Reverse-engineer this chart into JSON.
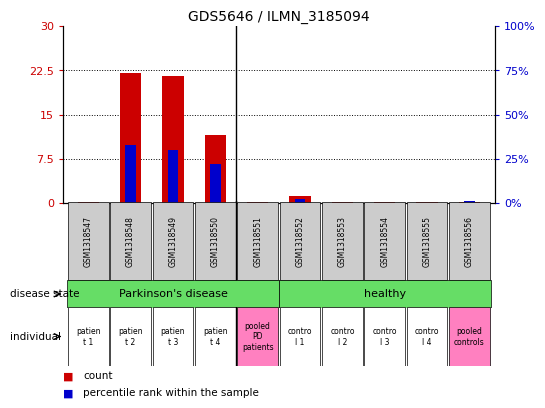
{
  "title": "GDS5646 / ILMN_3185094",
  "samples": [
    "GSM1318547",
    "GSM1318548",
    "GSM1318549",
    "GSM1318550",
    "GSM1318551",
    "GSM1318552",
    "GSM1318553",
    "GSM1318554",
    "GSM1318555",
    "GSM1318556"
  ],
  "count_values": [
    0.2,
    22.0,
    21.5,
    11.5,
    0.2,
    1.2,
    0.2,
    0.2,
    0.2,
    0.2
  ],
  "percentile_values": [
    0,
    33,
    30,
    22,
    0,
    2,
    0,
    0,
    0,
    1
  ],
  "ylim_left": [
    0,
    30
  ],
  "ylim_right": [
    0,
    100
  ],
  "yticks_left": [
    0,
    7.5,
    15,
    22.5,
    30
  ],
  "yticks_right": [
    0,
    25,
    50,
    75,
    100
  ],
  "ytick_labels_left": [
    "0",
    "7.5",
    "15",
    "22.5",
    "30"
  ],
  "ytick_labels_right": [
    "0%",
    "25%",
    "50%",
    "75%",
    "100%"
  ],
  "individual_labels": [
    "patien\nt 1",
    "patien\nt 2",
    "patien\nt 3",
    "patien\nt 4",
    "pooled\nPD\npatients",
    "contro\nl 1",
    "contro\nl 2",
    "contro\nl 3",
    "contro\nl 4",
    "pooled\ncontrols"
  ],
  "individual_colors": [
    "#ffffff",
    "#ffffff",
    "#ffffff",
    "#ffffff",
    "#ff80c0",
    "#ffffff",
    "#ffffff",
    "#ffffff",
    "#ffffff",
    "#ff80c0"
  ],
  "bar_color": "#cc0000",
  "percentile_color": "#0000cc",
  "xticklabel_bg": "#cccccc",
  "green_color": "#66dd66",
  "separator_idx": 4,
  "bar_width": 0.5,
  "perc_bar_width": 0.25
}
